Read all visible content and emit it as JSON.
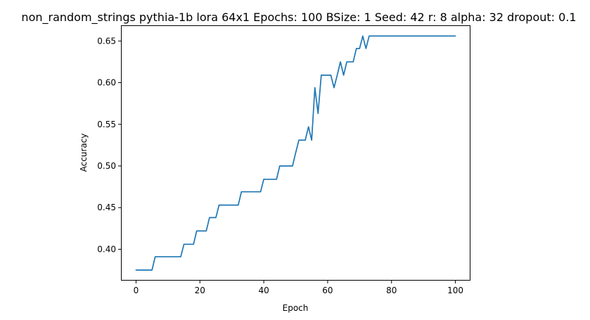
{
  "chart_data": {
    "type": "line",
    "title": "non_random_strings pythia-1b lora 64x1 Epochs: 100 BSize: 1 Seed: 42 r: 8 alpha: 32 dropout: 0.1",
    "xlabel": "Epoch",
    "ylabel": "Accuracy",
    "xlim": [
      -4.5,
      104.5
    ],
    "ylim": [
      0.3632,
      0.668
    ],
    "xticks": [
      0,
      20,
      40,
      60,
      80,
      100
    ],
    "yticks": [
      0.4,
      0.45,
      0.5,
      0.55,
      0.6,
      0.65
    ],
    "ytick_labels": [
      "0.40",
      "0.45",
      "0.50",
      "0.55",
      "0.60",
      "0.65"
    ],
    "grid": false,
    "colors": {
      "series": "#1f77b4"
    },
    "series": [
      {
        "x": [
          0,
          1,
          2,
          3,
          4,
          5,
          6,
          7,
          8,
          9,
          10,
          11,
          12,
          13,
          14,
          15,
          16,
          17,
          18,
          19,
          20,
          21,
          22,
          23,
          24,
          25,
          26,
          27,
          28,
          29,
          30,
          31,
          32,
          33,
          34,
          35,
          36,
          37,
          38,
          39,
          40,
          41,
          42,
          43,
          44,
          45,
          46,
          47,
          48,
          49,
          50,
          51,
          52,
          53,
          54,
          55,
          56,
          57,
          58,
          59,
          60,
          61,
          62,
          63,
          64,
          65,
          66,
          67,
          68,
          69,
          70,
          71,
          72,
          73,
          74,
          75,
          76,
          77,
          78,
          79,
          80,
          81,
          82,
          83,
          84,
          85,
          86,
          87,
          88,
          89,
          90,
          91,
          92,
          93,
          94,
          95,
          96,
          97,
          98,
          99,
          100
        ],
        "y": [
          0.375,
          0.375,
          0.375,
          0.375,
          0.375,
          0.375,
          0.391,
          0.391,
          0.391,
          0.391,
          0.391,
          0.391,
          0.391,
          0.391,
          0.391,
          0.406,
          0.406,
          0.406,
          0.406,
          0.422,
          0.422,
          0.422,
          0.422,
          0.438,
          0.438,
          0.438,
          0.453,
          0.453,
          0.453,
          0.453,
          0.453,
          0.453,
          0.453,
          0.469,
          0.469,
          0.469,
          0.469,
          0.469,
          0.469,
          0.469,
          0.484,
          0.484,
          0.484,
          0.484,
          0.484,
          0.5,
          0.5,
          0.5,
          0.5,
          0.5,
          0.516,
          0.531,
          0.531,
          0.531,
          0.547,
          0.531,
          0.594,
          0.563,
          0.609,
          0.609,
          0.609,
          0.609,
          0.594,
          0.609,
          0.625,
          0.609,
          0.625,
          0.625,
          0.625,
          0.641,
          0.641,
          0.656,
          0.641,
          0.656,
          0.656,
          0.656,
          0.656,
          0.656,
          0.656,
          0.656,
          0.656,
          0.656,
          0.656,
          0.656,
          0.656,
          0.656,
          0.656,
          0.656,
          0.656,
          0.656,
          0.656,
          0.656,
          0.656,
          0.656,
          0.656,
          0.656,
          0.656,
          0.656,
          0.656,
          0.656,
          0.656
        ]
      }
    ]
  }
}
